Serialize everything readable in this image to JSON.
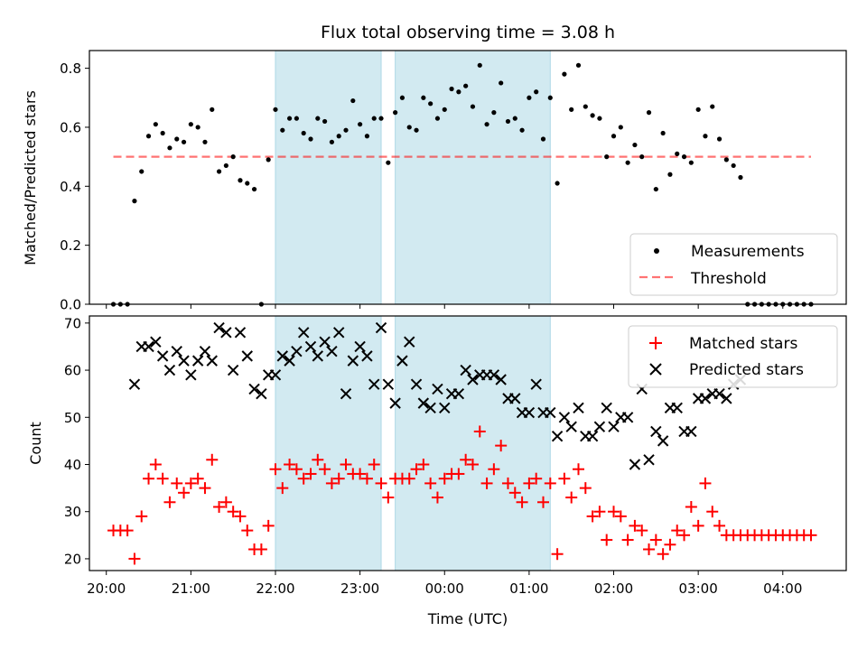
{
  "colors": {
    "shade": "#add8e6",
    "matched": "#ff0000",
    "predicted": "#000000",
    "measurement": "#000000",
    "threshold": "#ff0000"
  },
  "chart_data": {
    "type": "scatter",
    "title": "Flux total observing time = 3.08 h",
    "xlabel": "Time (UTC)",
    "x_tick_labels": [
      "20:00",
      "21:00",
      "22:00",
      "23:00",
      "00:00",
      "01:00",
      "02:00",
      "03:00",
      "04:00"
    ],
    "xlim": [
      "19:48",
      "04:45"
    ],
    "shaded_intervals": [
      {
        "start": "22:00",
        "end": "23:15"
      },
      {
        "start": "23:25",
        "end": "01:15"
      }
    ],
    "top_panel": {
      "ylabel": "Matched/Predicted stars",
      "ylim": [
        0,
        0.86
      ],
      "y_ticks": [
        "0.0",
        "0.2",
        "0.4",
        "0.6",
        "0.8"
      ],
      "threshold": 0.5,
      "threshold_range": [
        "20:05",
        "04:20"
      ],
      "legend": {
        "position": "lower right",
        "entries": [
          "Measurements",
          "Threshold"
        ]
      },
      "series": [
        {
          "name": "Measurements",
          "marker": "dot",
          "x": [
            "20:05",
            "20:10",
            "20:15",
            "20:20",
            "20:25",
            "20:30",
            "20:35",
            "20:40",
            "20:45",
            "20:50",
            "20:55",
            "21:00",
            "21:05",
            "21:10",
            "21:15",
            "21:20",
            "21:25",
            "21:30",
            "21:35",
            "21:40",
            "21:45",
            "21:50",
            "21:55",
            "22:00",
            "22:05",
            "22:10",
            "22:15",
            "22:20",
            "22:25",
            "22:30",
            "22:35",
            "22:40",
            "22:45",
            "22:50",
            "22:55",
            "23:00",
            "23:05",
            "23:10",
            "23:15",
            "23:20",
            "23:25",
            "23:30",
            "23:35",
            "23:40",
            "23:45",
            "23:50",
            "23:55",
            "00:00",
            "00:05",
            "00:10",
            "00:15",
            "00:20",
            "00:25",
            "00:30",
            "00:35",
            "00:40",
            "00:45",
            "00:50",
            "00:55",
            "01:00",
            "01:05",
            "01:10",
            "01:15",
            "01:20",
            "01:25",
            "01:30",
            "01:35",
            "01:40",
            "01:45",
            "01:50",
            "01:55",
            "02:00",
            "02:05",
            "02:10",
            "02:15",
            "02:20",
            "02:25",
            "02:30",
            "02:35",
            "02:40",
            "02:45",
            "02:50",
            "02:55",
            "03:00",
            "03:05",
            "03:10",
            "03:15",
            "03:20",
            "03:25",
            "03:30",
            "03:35",
            "03:40",
            "03:45",
            "03:50",
            "03:55",
            "04:00",
            "04:05",
            "04:10",
            "04:15",
            "04:20"
          ],
          "y": [
            0,
            0,
            0,
            0.35,
            0.45,
            0.57,
            0.61,
            0.58,
            0.53,
            0.56,
            0.55,
            0.61,
            0.6,
            0.55,
            0.66,
            0.45,
            0.47,
            0.5,
            0.42,
            0.41,
            0.39,
            0,
            0.49,
            0.66,
            0.59,
            0.63,
            0.63,
            0.58,
            0.56,
            0.63,
            0.62,
            0.55,
            0.57,
            0.59,
            0.69,
            0.61,
            0.57,
            0.63,
            0.63,
            0.48,
            0.65,
            0.7,
            0.6,
            0.59,
            0.7,
            0.68,
            0.63,
            0.66,
            0.73,
            0.72,
            0.74,
            0.67,
            0.81,
            0.61,
            0.65,
            0.75,
            0.62,
            0.63,
            0.59,
            0.7,
            0.72,
            0.56,
            0.7,
            0.41,
            0.78,
            0.66,
            0.81,
            0.67,
            0.64,
            0.63,
            0.5,
            0.57,
            0.6,
            0.48,
            0.54,
            0.5,
            0.65,
            0.39,
            0.58,
            0.44,
            0.51,
            0.5,
            0.48,
            0.66,
            0.57,
            0.67,
            0.56,
            0.49,
            0.47,
            0.43,
            0,
            0,
            0,
            0,
            0,
            0,
            0,
            0,
            0,
            0
          ]
        },
        {
          "name": "Threshold",
          "style": "dashed",
          "y": 0.5
        }
      ]
    },
    "bottom_panel": {
      "ylabel": "Count",
      "ylim": [
        17.5,
        71.5
      ],
      "y_ticks": [
        "20",
        "30",
        "40",
        "50",
        "60",
        "70"
      ],
      "legend": {
        "position": "upper right",
        "entries": [
          "Matched stars",
          "Predicted stars"
        ]
      },
      "series": [
        {
          "name": "Matched stars",
          "marker": "plus",
          "x": [
            "20:05",
            "20:10",
            "20:15",
            "20:20",
            "20:25",
            "20:30",
            "20:35",
            "20:40",
            "20:45",
            "20:50",
            "20:55",
            "21:00",
            "21:05",
            "21:10",
            "21:15",
            "21:20",
            "21:25",
            "21:30",
            "21:35",
            "21:40",
            "21:45",
            "21:50",
            "21:55",
            "22:00",
            "22:05",
            "22:10",
            "22:15",
            "22:20",
            "22:25",
            "22:30",
            "22:35",
            "22:40",
            "22:45",
            "22:50",
            "22:55",
            "23:00",
            "23:05",
            "23:10",
            "23:15",
            "23:20",
            "23:25",
            "23:30",
            "23:35",
            "23:40",
            "23:45",
            "23:50",
            "23:55",
            "00:00",
            "00:05",
            "00:10",
            "00:15",
            "00:20",
            "00:25",
            "00:30",
            "00:35",
            "00:40",
            "00:45",
            "00:50",
            "00:55",
            "01:00",
            "01:05",
            "01:10",
            "01:15",
            "01:20",
            "01:25",
            "01:30",
            "01:35",
            "01:40",
            "01:45",
            "01:50",
            "01:55",
            "02:00",
            "02:05",
            "02:10",
            "02:15",
            "02:20",
            "02:25",
            "02:30",
            "02:35",
            "02:40",
            "02:45",
            "02:50",
            "02:55",
            "03:00",
            "03:05",
            "03:10",
            "03:15",
            "03:20",
            "03:25",
            "03:30",
            "03:35",
            "03:40",
            "03:45",
            "03:50",
            "03:55",
            "04:00",
            "04:05",
            "04:10",
            "04:15",
            "04:20"
          ],
          "y": [
            26,
            26,
            26,
            20,
            29,
            37,
            40,
            37,
            32,
            36,
            34,
            36,
            37,
            35,
            41,
            31,
            32,
            30,
            29,
            26,
            22,
            22,
            27,
            39,
            35,
            40,
            39,
            37,
            38,
            41,
            39,
            36,
            37,
            40,
            38,
            38,
            37,
            40,
            36,
            33,
            37,
            37,
            37,
            39,
            40,
            36,
            33,
            37,
            38,
            38,
            41,
            40,
            47,
            36,
            39,
            44,
            36,
            34,
            32,
            36,
            37,
            32,
            36,
            21,
            37,
            33,
            39,
            35,
            29,
            30,
            24,
            30,
            29,
            24,
            27,
            26,
            22,
            24,
            21,
            23,
            26,
            25,
            31,
            27,
            36,
            30,
            27,
            25,
            25,
            25,
            25,
            25,
            25,
            25,
            25,
            25,
            25,
            25,
            25,
            25
          ]
        },
        {
          "name": "Predicted stars",
          "marker": "x",
          "x": [
            "20:20",
            "20:25",
            "20:30",
            "20:35",
            "20:40",
            "20:45",
            "20:50",
            "20:55",
            "21:00",
            "21:05",
            "21:10",
            "21:15",
            "21:20",
            "21:25",
            "21:30",
            "21:35",
            "21:40",
            "21:45",
            "21:50",
            "21:55",
            "22:00",
            "22:05",
            "22:10",
            "22:15",
            "22:20",
            "22:25",
            "22:30",
            "22:35",
            "22:40",
            "22:45",
            "22:50",
            "22:55",
            "23:00",
            "23:05",
            "23:10",
            "23:15",
            "23:20",
            "23:25",
            "23:30",
            "23:35",
            "23:40",
            "23:45",
            "23:50",
            "23:55",
            "00:00",
            "00:05",
            "00:10",
            "00:15",
            "00:20",
            "00:25",
            "00:30",
            "00:35",
            "00:40",
            "00:45",
            "00:50",
            "00:55",
            "01:00",
            "01:05",
            "01:10",
            "01:15",
            "01:20",
            "01:25",
            "01:30",
            "01:35",
            "01:40",
            "01:45",
            "01:50",
            "01:55",
            "02:00",
            "02:05",
            "02:10",
            "02:15",
            "02:20",
            "02:25",
            "02:30",
            "02:35",
            "02:40",
            "02:45",
            "02:50",
            "02:55",
            "03:00",
            "03:05",
            "03:10",
            "03:15",
            "03:20",
            "03:25",
            "03:30"
          ],
          "y": [
            57,
            65,
            65,
            66,
            63,
            60,
            64,
            62,
            59,
            62,
            64,
            62,
            69,
            68,
            60,
            68,
            63,
            56,
            55,
            59,
            59,
            63,
            62,
            64,
            68,
            65,
            63,
            66,
            64,
            68,
            55,
            62,
            65,
            63,
            57,
            69,
            57,
            53,
            62,
            66,
            57,
            53,
            52,
            56,
            52,
            55,
            55,
            60,
            58,
            59,
            59,
            59,
            58,
            54,
            54,
            51,
            51,
            57,
            51,
            51,
            46,
            50,
            48,
            52,
            46,
            46,
            48,
            52,
            48,
            50,
            50,
            40,
            56,
            41,
            47,
            45,
            52,
            52,
            47,
            47,
            54,
            54,
            55,
            55,
            54,
            57,
            58
          ]
        }
      ]
    }
  }
}
